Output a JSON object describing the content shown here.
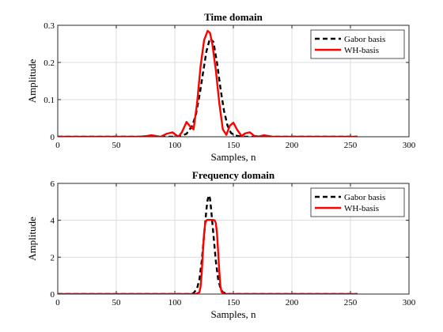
{
  "chart_data": [
    {
      "type": "line",
      "title": "Time domain",
      "xlabel": "Samples, n",
      "ylabel": "Amplitude",
      "xlim": [
        0,
        300
      ],
      "ylim": [
        0,
        0.3
      ],
      "xticks": [
        0,
        50,
        100,
        150,
        200,
        250,
        300
      ],
      "yticks": [
        0,
        0.1,
        0.2,
        0.3
      ],
      "xtick_labels": [
        "0",
        "50",
        "100",
        "150",
        "200",
        "250",
        "300"
      ],
      "ytick_labels": [
        "0",
        "0.1",
        "0.2",
        "0.3"
      ],
      "grid": true,
      "legend_position": "top-right",
      "series": [
        {
          "name": "Gabor basis",
          "style": "dashed",
          "color": "#000000",
          "x": [
            0,
            100,
            105,
            110,
            115,
            118,
            121,
            124,
            127,
            130,
            133,
            136,
            139,
            142,
            145,
            148,
            152,
            156,
            160,
            256
          ],
          "y": [
            0,
            0,
            0.002,
            0.008,
            0.03,
            0.06,
            0.11,
            0.17,
            0.23,
            0.265,
            0.255,
            0.2,
            0.13,
            0.07,
            0.03,
            0.01,
            0.003,
            0.001,
            0,
            0
          ]
        },
        {
          "name": "WH-basis",
          "style": "solid",
          "color": "#ff0000",
          "x": [
            0,
            70,
            76,
            80,
            84,
            88,
            93,
            98,
            103,
            106,
            110,
            113,
            116,
            119,
            122,
            125,
            128,
            130,
            132,
            135,
            138,
            141,
            144,
            147,
            150,
            153,
            157,
            160,
            164,
            168,
            172,
            176,
            180,
            184,
            190,
            256
          ],
          "y": [
            0,
            0,
            0.002,
            0.004,
            0.002,
            0,
            0.008,
            0.012,
            0,
            0.012,
            0.04,
            0.028,
            0.02,
            0.09,
            0.19,
            0.26,
            0.285,
            0.28,
            0.25,
            0.18,
            0.09,
            0.02,
            0.005,
            0.03,
            0.038,
            0.02,
            0.002,
            0.009,
            0.012,
            0.002,
            0.001,
            0.004,
            0.002,
            0,
            0,
            0
          ]
        }
      ]
    },
    {
      "type": "line",
      "title": "Frequency domain",
      "xlabel": "Samples, n",
      "ylabel": "Amplitude",
      "xlim": [
        0,
        300
      ],
      "ylim": [
        0,
        6
      ],
      "xticks": [
        0,
        50,
        100,
        150,
        200,
        250,
        300
      ],
      "yticks": [
        0,
        2,
        4,
        6
      ],
      "xtick_labels": [
        "0",
        "50",
        "100",
        "150",
        "200",
        "250",
        "300"
      ],
      "ytick_labels": [
        "0",
        "2",
        "4",
        "6"
      ],
      "grid": true,
      "legend_position": "top-right",
      "series": [
        {
          "name": "Gabor basis",
          "style": "dashed",
          "color": "#000000",
          "x": [
            0,
            112,
            116,
            119,
            121,
            123,
            125,
            127,
            128,
            129,
            130,
            131,
            133,
            135,
            137,
            139,
            141,
            144,
            148,
            256
          ],
          "y": [
            0,
            0,
            0.05,
            0.3,
            0.8,
            1.8,
            3.2,
            4.6,
            5.1,
            5.35,
            5.2,
            4.6,
            3.2,
            1.8,
            0.8,
            0.3,
            0.1,
            0.02,
            0,
            0
          ]
        },
        {
          "name": "WH-basis",
          "style": "solid",
          "color": "#ff0000",
          "x": [
            0,
            118,
            121,
            122,
            123,
            124,
            125,
            126,
            127,
            128,
            132,
            134,
            135,
            136,
            137,
            138,
            139,
            140,
            142,
            145,
            256
          ],
          "y": [
            0,
            0,
            0.1,
            0.4,
            1.2,
            2.3,
            3.3,
            3.85,
            4.0,
            4.02,
            4.02,
            4.0,
            3.85,
            3.3,
            2.3,
            1.2,
            0.4,
            0.1,
            0.02,
            0,
            0
          ]
        }
      ]
    }
  ]
}
